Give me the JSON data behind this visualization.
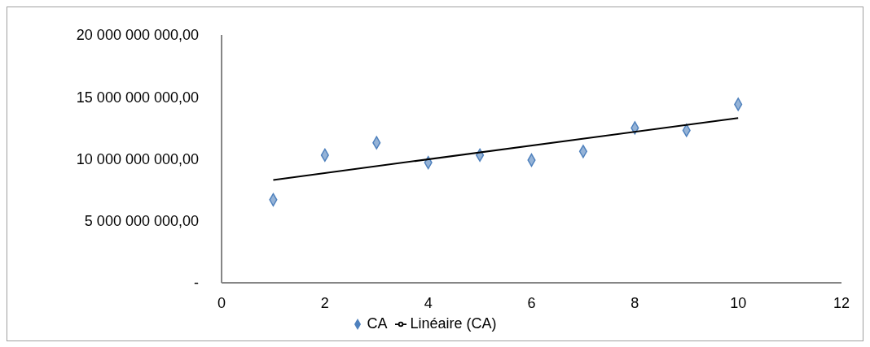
{
  "chart_data": {
    "type": "scatter",
    "marker": "diamond",
    "legend": "bottom",
    "grid": false,
    "xlim": [
      0,
      12
    ],
    "xticks": [
      0,
      2,
      4,
      6,
      8,
      10,
      12
    ],
    "ylim": [
      0,
      20000000000
    ],
    "yticks": [
      {
        "value": 0,
        "label": "-"
      },
      {
        "value": 5000000000,
        "label": "5 000 000 000,00"
      },
      {
        "value": 10000000000,
        "label": "10 000 000 000,00"
      },
      {
        "value": 15000000000,
        "label": "15 000 000 000,00"
      },
      {
        "value": 20000000000,
        "label": "20 000 000 000,00"
      }
    ],
    "x": [
      1,
      2,
      3,
      4,
      5,
      6,
      7,
      8,
      9,
      10
    ],
    "series": [
      {
        "name": "CA",
        "color": "#4f81bd",
        "values": [
          6700000000,
          10300000000,
          11300000000,
          9700000000,
          10300000000,
          9900000000,
          10600000000,
          12500000000,
          12300000000,
          14400000000
        ]
      },
      {
        "name": "Linéaire (CA)",
        "type": "line",
        "marker": "none",
        "color": "#000000",
        "x": [
          1,
          10
        ],
        "values": [
          8300000000,
          13300000000
        ]
      }
    ]
  }
}
